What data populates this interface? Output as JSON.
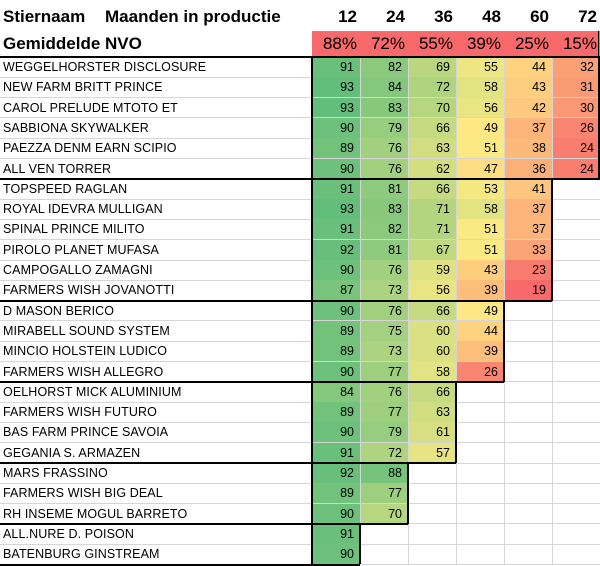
{
  "chart_data": {
    "type": "table",
    "header": {
      "name_col": "Stiernaam",
      "months_label": "Maanden in productie",
      "months": [
        "12",
        "24",
        "36",
        "48",
        "60",
        "72"
      ]
    },
    "average": {
      "label": "Gemiddelde NVO",
      "values": [
        "88%",
        "72%",
        "55%",
        "39%",
        "25%",
        "15%"
      ],
      "color": "#f8696b"
    },
    "color_scale": {
      "min_color": "#f8696b",
      "mid_color": "#ffeb84",
      "max_color": "#63be7b",
      "min": 19,
      "mid": 50,
      "max": 93
    },
    "groups": [
      {
        "rows": [
          {
            "name": "WEGGELHORSTER DISCLOSURE",
            "values": [
              91,
              82,
              69,
              55,
              44,
              32
            ]
          },
          {
            "name": "NEW FARM BRITT PRINCE",
            "values": [
              93,
              84,
              72,
              58,
              43,
              31
            ]
          },
          {
            "name": "CAROL PRELUDE MTOTO ET",
            "values": [
              93,
              83,
              70,
              56,
              42,
              30
            ]
          },
          {
            "name": "SABBIONA SKYWALKER",
            "values": [
              90,
              79,
              66,
              49,
              37,
              26
            ]
          },
          {
            "name": "PAEZZA DENM EARN SCIPIO",
            "values": [
              89,
              76,
              63,
              51,
              38,
              24
            ]
          },
          {
            "name": "ALL VEN TORRER",
            "values": [
              90,
              76,
              62,
              47,
              36,
              24
            ]
          }
        ]
      },
      {
        "rows": [
          {
            "name": "TOPSPEED RAGLAN",
            "values": [
              91,
              81,
              66,
              53,
              41
            ]
          },
          {
            "name": "ROYAL IDEVRA MULLIGAN",
            "values": [
              93,
              83,
              71,
              58,
              37
            ]
          },
          {
            "name": "SPINAL PRINCE MILITO",
            "values": [
              91,
              82,
              71,
              51,
              37
            ]
          },
          {
            "name": "PIROLO PLANET MUFASA",
            "values": [
              92,
              81,
              67,
              51,
              33
            ]
          },
          {
            "name": "CAMPOGALLO ZAMAGNI",
            "values": [
              90,
              76,
              59,
              43,
              23
            ]
          },
          {
            "name": "FARMERS WISH JOVANOTTI",
            "values": [
              87,
              73,
              56,
              39,
              19
            ]
          }
        ]
      },
      {
        "rows": [
          {
            "name": "D MASON BERICO",
            "values": [
              90,
              76,
              66,
              49
            ]
          },
          {
            "name": "MIRABELL SOUND SYSTEM",
            "values": [
              89,
              75,
              60,
              44
            ]
          },
          {
            "name": "MINCIO HOLSTEIN LUDICO",
            "values": [
              89,
              73,
              60,
              39
            ]
          },
          {
            "name": "FARMERS WISH ALLEGRO",
            "values": [
              90,
              77,
              58,
              26
            ]
          }
        ]
      },
      {
        "rows": [
          {
            "name": "OELHORST MICK ALUMINIUM",
            "values": [
              84,
              76,
              66
            ]
          },
          {
            "name": "FARMERS WISH FUTURO",
            "values": [
              89,
              77,
              63
            ]
          },
          {
            "name": "BAS FARM PRINCE SAVOIA",
            "values": [
              90,
              79,
              61
            ]
          },
          {
            "name": "GEGANIA S. ARMAZEN",
            "values": [
              91,
              72,
              57
            ]
          }
        ]
      },
      {
        "rows": [
          {
            "name": "MARS FRASSINO",
            "values": [
              92,
              88
            ]
          },
          {
            "name": "FARMERS WISH BIG DEAL",
            "values": [
              89,
              77
            ]
          },
          {
            "name": "RH INSEME MOGUL BARRETO",
            "values": [
              90,
              70
            ]
          }
        ]
      },
      {
        "rows": [
          {
            "name": "ALL.NURE D. POISON",
            "values": [
              91
            ]
          },
          {
            "name": "BATENBURG GINSTREAM",
            "values": [
              90
            ]
          }
        ]
      }
    ]
  }
}
